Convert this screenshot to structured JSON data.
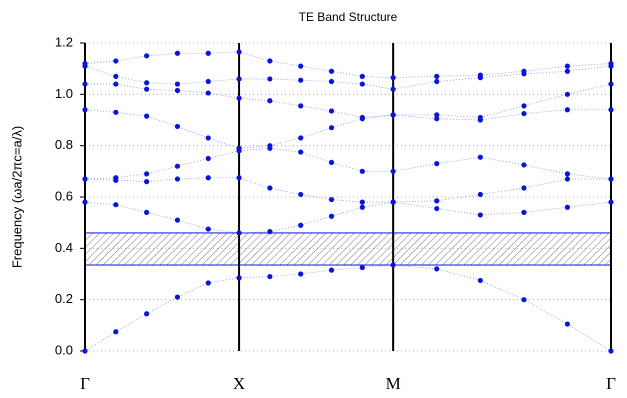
{
  "chart_data": {
    "type": "scatter",
    "title": "TE Band Structure",
    "y_label": "Frequency (ωa/2πc=a/λ)",
    "x": [
      0,
      0.2,
      0.4,
      0.6,
      0.8,
      1,
      1.2,
      1.4,
      1.6,
      1.8,
      2,
      2.283,
      2.566,
      2.849,
      3.131,
      3.414
    ],
    "xlim": [
      0,
      3.414
    ],
    "xticks": [
      {
        "value": 0,
        "label": "Γ"
      },
      {
        "value": 1,
        "label": "X"
      },
      {
        "value": 2,
        "label": "M"
      },
      {
        "value": 3.414,
        "label": "Γ"
      }
    ],
    "ylim": [
      0,
      1.2
    ],
    "yticks": [
      {
        "value": 0,
        "label": "0.0"
      },
      0.2,
      0.4,
      0.6,
      0.8,
      {
        "value": 1,
        "label": "1.0"
      },
      1.2
    ],
    "grid": true,
    "color": "#0a14dc",
    "band_gap": {
      "lower": 0.335,
      "upper": 0.46
    },
    "series": [
      {
        "values": [
          0,
          0.075,
          0.145,
          0.21,
          0.265,
          0.285,
          0.29,
          0.3,
          0.315,
          0.325,
          0.335,
          0.32,
          0.275,
          0.2,
          0.105,
          0
        ]
      },
      {
        "values": [
          0.58,
          0.57,
          0.54,
          0.51,
          0.475,
          0.46,
          0.465,
          0.49,
          0.525,
          0.56,
          0.58,
          0.555,
          0.53,
          0.54,
          0.56,
          0.58
        ]
      },
      {
        "values": [
          0.67,
          0.665,
          0.66,
          0.67,
          0.675,
          0.675,
          0.635,
          0.61,
          0.59,
          0.58,
          0.58,
          0.585,
          0.61,
          0.635,
          0.67,
          0.67
        ]
      },
      {
        "values": [
          0.67,
          0.675,
          0.69,
          0.72,
          0.75,
          0.78,
          0.79,
          0.775,
          0.735,
          0.7,
          0.7,
          0.73,
          0.755,
          0.725,
          0.69,
          0.67
        ]
      },
      {
        "values": [
          0.94,
          0.93,
          0.915,
          0.875,
          0.83,
          0.79,
          0.8,
          0.83,
          0.87,
          0.905,
          0.92,
          0.905,
          0.9,
          0.925,
          0.94,
          0.94
        ]
      },
      {
        "values": [
          1.04,
          1.04,
          1.02,
          1.015,
          1.005,
          0.985,
          0.975,
          0.955,
          0.935,
          0.91,
          0.92,
          0.92,
          0.91,
          0.955,
          1.0,
          1.04
        ]
      },
      {
        "values": [
          1.11,
          1.07,
          1.045,
          1.04,
          1.05,
          1.06,
          1.06,
          1.055,
          1.05,
          1.04,
          1.02,
          1.05,
          1.065,
          1.08,
          1.09,
          1.11
        ]
      },
      {
        "values": [
          1.12,
          1.13,
          1.15,
          1.16,
          1.16,
          1.165,
          1.13,
          1.11,
          1.09,
          1.07,
          1.065,
          1.07,
          1.075,
          1.09,
          1.11,
          1.12
        ]
      }
    ]
  }
}
